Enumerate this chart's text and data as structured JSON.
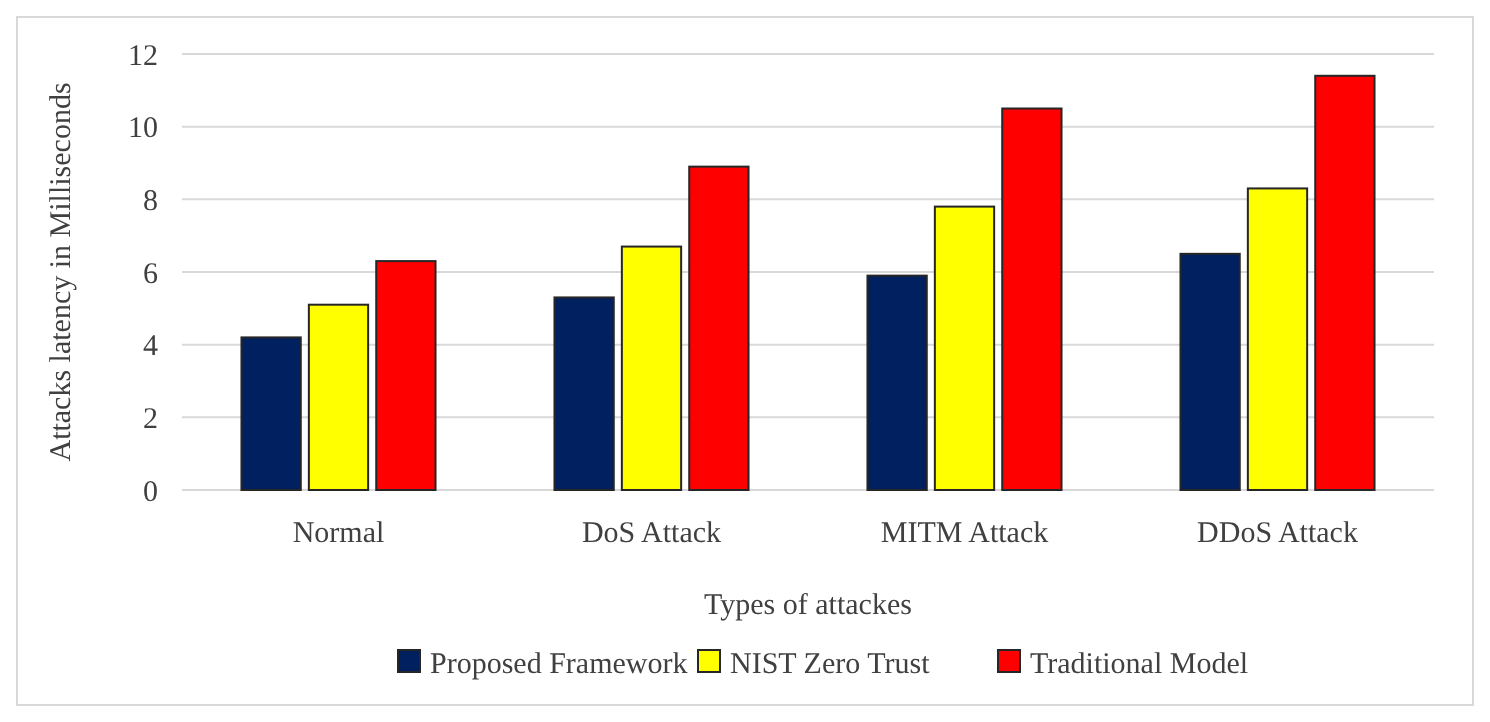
{
  "chart_data": {
    "type": "bar",
    "xlabel": "Types of attackes",
    "ylabel": "Attacks latency in Milliseconds",
    "categories": [
      "Normal",
      "DoS Attack",
      "MITM Attack",
      "DDoS Attack"
    ],
    "series": [
      {
        "name": "Proposed Framework",
        "color": "#002060",
        "values": [
          4.2,
          5.3,
          5.9,
          6.5
        ]
      },
      {
        "name": "NIST Zero Trust",
        "color": "#ffff00",
        "values": [
          5.1,
          6.7,
          7.8,
          8.3
        ]
      },
      {
        "name": "Traditional Model",
        "color": "#ff0000",
        "values": [
          6.3,
          8.9,
          10.5,
          11.4
        ]
      }
    ],
    "ylim": [
      0,
      12
    ],
    "yticks": [
      0,
      2,
      4,
      6,
      8,
      10,
      12
    ],
    "grid": "y",
    "legend": "bottom"
  }
}
